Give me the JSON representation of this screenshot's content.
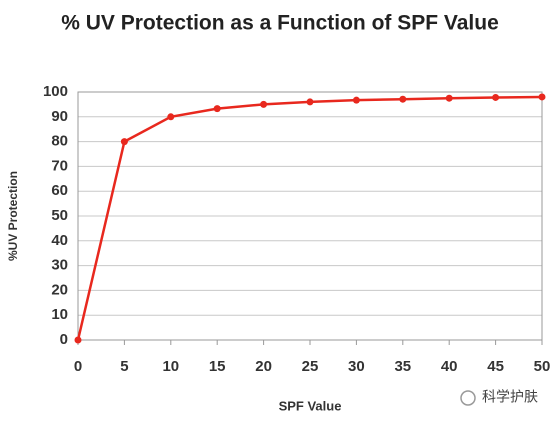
{
  "chart_data": {
    "type": "line",
    "title": "% UV Protection as a Function of SPF Value",
    "x_label": "SPF Value",
    "y_label": "%UV Protection",
    "x": [
      0,
      5,
      10,
      15,
      20,
      25,
      30,
      35,
      40,
      45,
      50
    ],
    "values": [
      0,
      80,
      90,
      93.3,
      95,
      96,
      96.7,
      97.1,
      97.5,
      97.8,
      98
    ],
    "color": "#e8281e",
    "xlim": [
      0,
      50
    ],
    "xticks": [
      0,
      5,
      10,
      15,
      20,
      25,
      30,
      35,
      40,
      45,
      50
    ],
    "ylim": [
      0,
      100
    ],
    "yticks": [
      0,
      10,
      20,
      30,
      40,
      50,
      60,
      70,
      80,
      90,
      100
    ],
    "grid": true,
    "watermark": "科学护肤"
  }
}
